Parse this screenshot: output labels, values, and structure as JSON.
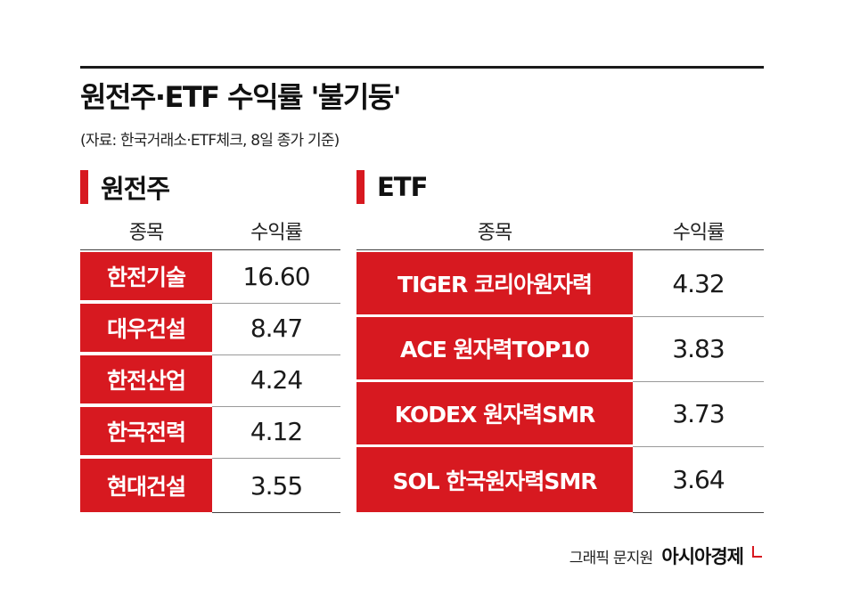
{
  "title": "원전주·ETF 수익률 '불기둥'",
  "source": "(자료: 한국거래소·ETF체크, 8일 종가 기준)",
  "colors": {
    "accent": "#d71920",
    "text": "#1a1a1a"
  },
  "nuclear": {
    "section_label": "원전주",
    "col_name": "종목",
    "col_return": "수익률",
    "rows": [
      {
        "name": "한전기술",
        "value": "16.60"
      },
      {
        "name": "대우건설",
        "value": "8.47"
      },
      {
        "name": "한전산업",
        "value": "4.24"
      },
      {
        "name": "한국전력",
        "value": "4.12"
      },
      {
        "name": "현대건설",
        "value": "3.55"
      }
    ]
  },
  "etf": {
    "section_label": "ETF",
    "col_name": "종목",
    "col_return": "수익률",
    "rows": [
      {
        "name": "TIGER 코리아원자력",
        "value": "4.32"
      },
      {
        "name": "ACE 원자력TOP10",
        "value": "3.83"
      },
      {
        "name": "KODEX 원자력SMR",
        "value": "3.73"
      },
      {
        "name": "SOL 한국원자력SMR",
        "value": "3.64"
      }
    ]
  },
  "credit": {
    "graphic": "그래픽 문지원",
    "brand": "아시아경제"
  }
}
